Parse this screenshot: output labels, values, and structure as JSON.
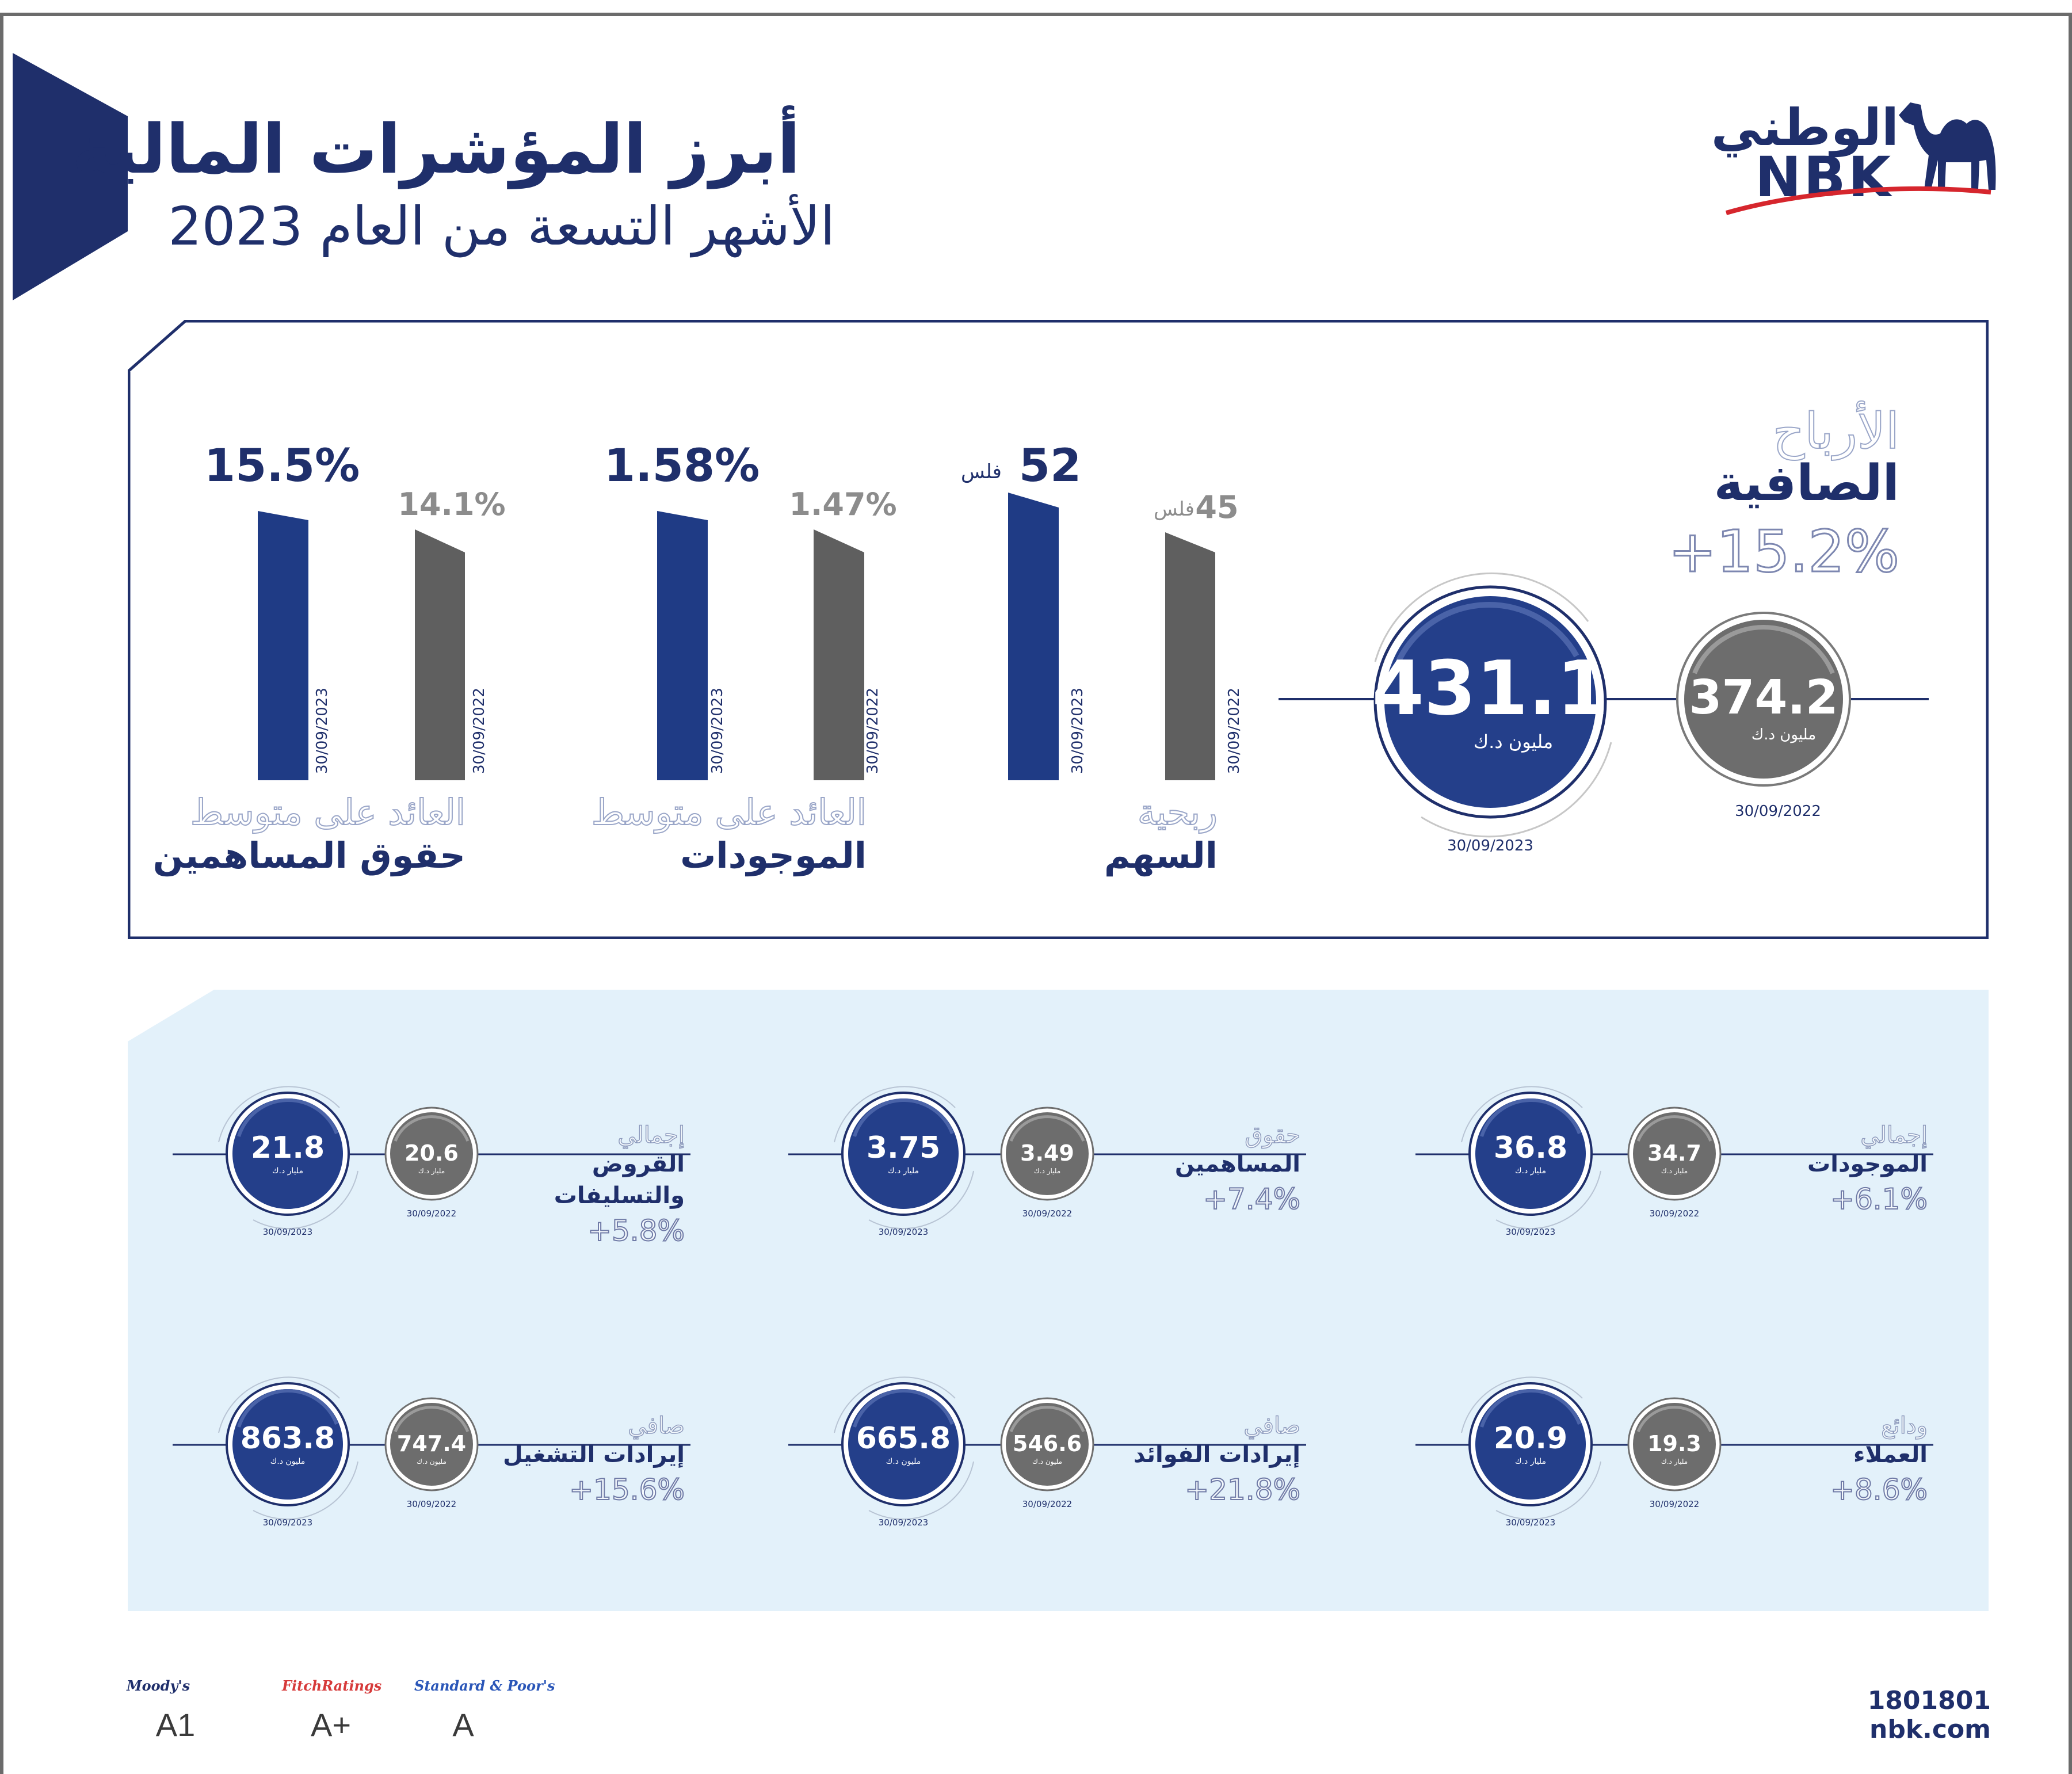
{
  "header": {
    "title": "أبرز المؤشرات المالية",
    "subtitle": "الأشهر التسعة من العام 2023"
  },
  "logo": {
    "arabic": "الوطني",
    "english": "NBK",
    "icon": "camel-icon"
  },
  "net_profit": {
    "label_line1": "الأرباح",
    "label_line2": "الصافية",
    "change": "+15.2%",
    "current": {
      "value": "431.1",
      "unit": "مليون د.ك",
      "date": "30/09/2023"
    },
    "previous": {
      "value": "374.2",
      "unit": "مليون د.ك",
      "date": "30/09/2022"
    }
  },
  "bar_groups": [
    {
      "label_line1": "ربحية",
      "label_line2": "السهم",
      "current": {
        "value": "52",
        "suffix": "فلس",
        "date": "30/09/2023"
      },
      "previous": {
        "value": "45",
        "suffix": "فلس",
        "date": "30/09/2022"
      }
    },
    {
      "label_line1": "العائد على متوسط",
      "label_line2": "الموجودات",
      "current": {
        "value": "1.58%",
        "date": "30/09/2023"
      },
      "previous": {
        "value": "1.47%",
        "date": "30/09/2022"
      }
    },
    {
      "label_line1": "العائد على متوسط",
      "label_line2": "حقوق المساهمين",
      "current": {
        "value": "15.5%",
        "date": "30/09/2023"
      },
      "previous": {
        "value": "14.1%",
        "date": "30/09/2022"
      }
    }
  ],
  "metrics": [
    {
      "label_outline": "إجمالي",
      "label_bold": [
        "الموجودات"
      ],
      "change": "+6.1%",
      "current": {
        "value": "36.8",
        "unit": "مليار د.ك",
        "date": "30/09/2023"
      },
      "previous": {
        "value": "34.7",
        "unit": "مليار د.ك",
        "date": "30/09/2022"
      }
    },
    {
      "label_outline": "حقوق",
      "label_bold": [
        "المساهمين"
      ],
      "change": "+7.4%",
      "current": {
        "value": "3.75",
        "unit": "مليار د.ك",
        "date": "30/09/2023"
      },
      "previous": {
        "value": "3.49",
        "unit": "مليار د.ك",
        "date": "30/09/2022"
      }
    },
    {
      "label_outline": "إجمالي",
      "label_bold": [
        "القروض",
        "والتسليفات"
      ],
      "change": "+5.8%",
      "current": {
        "value": "21.8",
        "unit": "مليار د.ك",
        "date": "30/09/2023"
      },
      "previous": {
        "value": "20.6",
        "unit": "مليار د.ك",
        "date": "30/09/2022"
      }
    },
    {
      "label_outline": "ودائع",
      "label_bold": [
        "العملاء"
      ],
      "change": "+8.6%",
      "current": {
        "value": "20.9",
        "unit": "مليار د.ك",
        "date": "30/09/2023"
      },
      "previous": {
        "value": "19.3",
        "unit": "مليار د.ك",
        "date": "30/09/2022"
      }
    },
    {
      "label_outline": "صافي",
      "label_bold": [
        "إيرادات الفوائد"
      ],
      "change": "+21.8%",
      "current": {
        "value": "665.8",
        "unit": "مليون د.ك",
        "date": "30/09/2023"
      },
      "previous": {
        "value": "546.6",
        "unit": "مليون د.ك",
        "date": "30/09/2022"
      }
    },
    {
      "label_outline": "صافي",
      "label_bold": [
        "إيرادات التشغيل"
      ],
      "change": "+15.6%",
      "current": {
        "value": "863.8",
        "unit": "مليون د.ك",
        "date": "30/09/2023"
      },
      "previous": {
        "value": "747.4",
        "unit": "مليون د.ك",
        "date": "30/09/2022"
      }
    }
  ],
  "ratings": [
    {
      "agency": "Moody's",
      "grade": "A1",
      "color": "#1f2f6b"
    },
    {
      "agency": "FitchRatings",
      "grade": "A+",
      "color": "#d63a3a"
    },
    {
      "agency": "Standard & Poor's",
      "grade": "A",
      "color": "#2a56b8"
    }
  ],
  "contact": {
    "phone": "1801801",
    "website": "nbk.com"
  },
  "colors": {
    "navy": "#1f2f6b",
    "blue_circle": "#243f8a",
    "grey_bar": "#5f5f5f",
    "light_panel": "#e3f1fa",
    "swoosh_red": "#d6262d"
  }
}
